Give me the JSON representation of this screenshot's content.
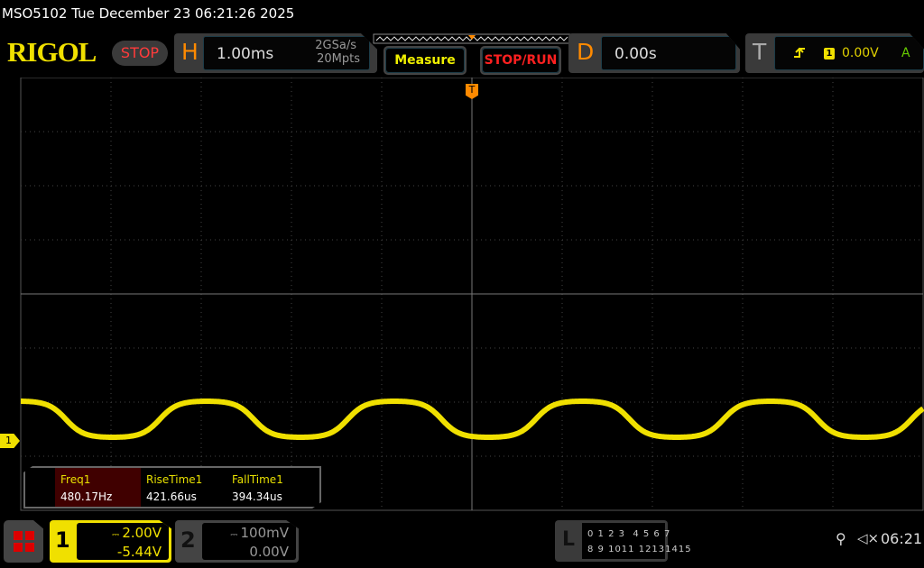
{
  "title": "MSO5102  Tue December 23 06:21:26 2025",
  "brand": "RIGOL",
  "run_state": "STOP",
  "horizontal": {
    "label": "H",
    "timebase": "1.00ms",
    "sample_rate": "2GSa/s",
    "memory_depth": "20Mpts"
  },
  "buttons": {
    "measure": "Measure",
    "stop_run": "STOP/RUN"
  },
  "delay": {
    "label": "D",
    "value": "0.00s"
  },
  "trigger": {
    "label": "T",
    "source": "1",
    "level": "0.00V",
    "mode": "A",
    "slope_icon": "rising-edge-icon"
  },
  "channel_marker": "1",
  "measurements": [
    {
      "label": "Freq1",
      "value": "480.17Hz"
    },
    {
      "label": "RiseTime1",
      "value": "421.66us"
    },
    {
      "label": "FallTime1",
      "value": "394.34us"
    }
  ],
  "channels": [
    {
      "num": "1",
      "scale": "2.00V",
      "offset": "-5.44V",
      "color": "#f0e000"
    },
    {
      "num": "2",
      "scale": "100mV",
      "offset": "0.00V",
      "color": "#888888"
    }
  ],
  "logic": {
    "label": "L",
    "row1": "0 1 2 3  4 5 6 7",
    "row2": "8 9 1011 12131415"
  },
  "status": {
    "time": "06:21",
    "usb_icon": "usb-icon",
    "mute_icon": "speaker-muted-icon"
  },
  "colors": {
    "trace": "#f0e000",
    "brand": "#f0e000",
    "accent": "#ff8a00",
    "stop": "#ff3b3b"
  }
}
